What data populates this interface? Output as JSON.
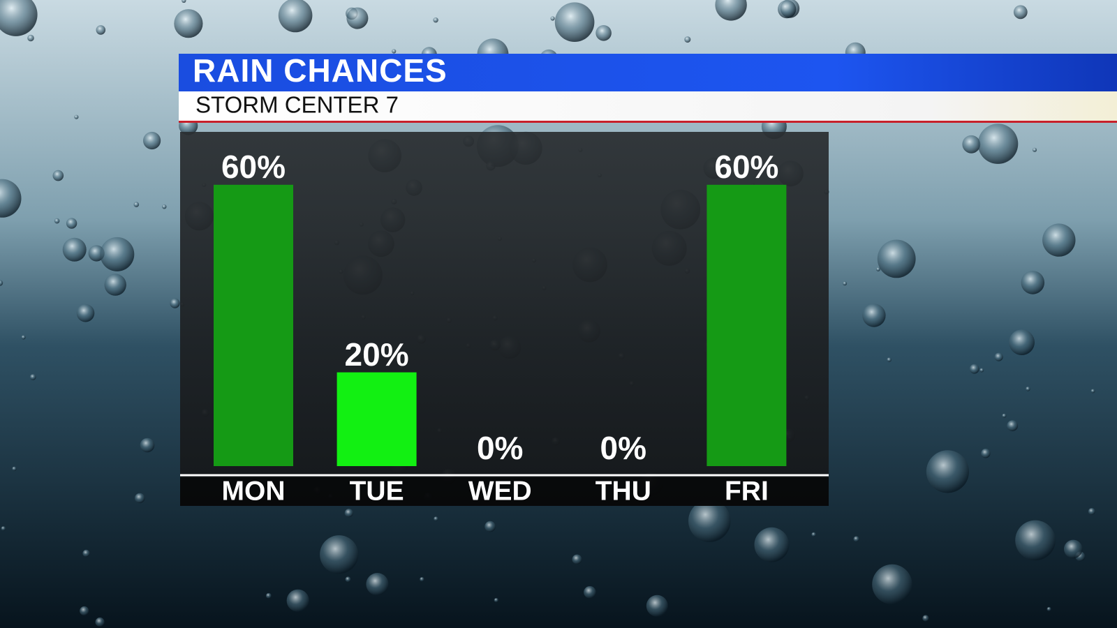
{
  "chart_data": {
    "type": "bar",
    "title": "RAIN CHANCES",
    "subtitle": "STORM CENTER 7",
    "categories": [
      "MON",
      "TUE",
      "WED",
      "THU",
      "FRI"
    ],
    "values": [
      60,
      20,
      0,
      0,
      60
    ],
    "value_labels": [
      "60%",
      "20%",
      "0%",
      "0%",
      "60%"
    ],
    "colors": [
      "#159a15",
      "#12f012",
      "#159a15",
      "#159a15",
      "#159a15"
    ]
  }
}
